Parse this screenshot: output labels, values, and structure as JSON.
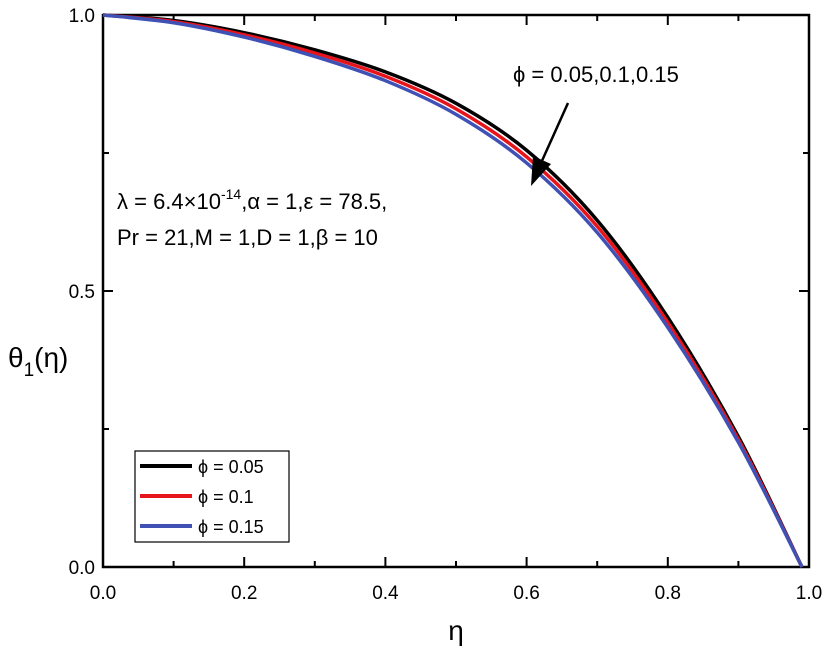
{
  "chart_data": {
    "type": "line",
    "title": "",
    "xlabel": "η",
    "ylabel": {
      "base": "θ",
      "sub": "1",
      "suffix": "(η)"
    },
    "xlim": [
      0.0,
      1.0
    ],
    "ylim": [
      0.0,
      1.0
    ],
    "x_ticks": [
      "0.0",
      "0.2",
      "0.4",
      "0.6",
      "0.8",
      "1.0"
    ],
    "y_ticks": [
      "0.0",
      "0.5",
      "1.0"
    ],
    "grid": false,
    "legend_position": "bottom-left",
    "series": [
      {
        "name": "ϕ = 0.05",
        "color": "#000000",
        "x": [
          0.0,
          0.1,
          0.2,
          0.3,
          0.4,
          0.5,
          0.6,
          0.7,
          0.8,
          0.9,
          0.99
        ],
        "y": [
          1.0,
          0.99,
          0.968,
          0.937,
          0.897,
          0.84,
          0.755,
          0.628,
          0.452,
          0.236,
          0.0
        ]
      },
      {
        "name": "ϕ = 0.1",
        "color": "#e8141c",
        "x": [
          0.0,
          0.1,
          0.2,
          0.3,
          0.4,
          0.5,
          0.6,
          0.7,
          0.8,
          0.9,
          0.99
        ],
        "y": [
          1.0,
          0.988,
          0.964,
          0.931,
          0.889,
          0.83,
          0.743,
          0.617,
          0.443,
          0.231,
          0.0
        ]
      },
      {
        "name": "ϕ = 0.15",
        "color": "#3f51b5",
        "x": [
          0.0,
          0.1,
          0.2,
          0.3,
          0.4,
          0.5,
          0.6,
          0.7,
          0.8,
          0.9,
          0.99
        ],
        "y": [
          1.0,
          0.986,
          0.96,
          0.925,
          0.881,
          0.82,
          0.732,
          0.606,
          0.434,
          0.226,
          0.0
        ]
      }
    ],
    "annotations": {
      "arrow_label": "ϕ = 0.05,0.1,0.15",
      "params_line1": {
        "a": "λ = 6.4×10",
        "sup": "-14",
        "b": ",α = 1,ε = 78.5,"
      },
      "params_line2": "Pr = 21,M = 1,D = 1,β = 10"
    }
  }
}
